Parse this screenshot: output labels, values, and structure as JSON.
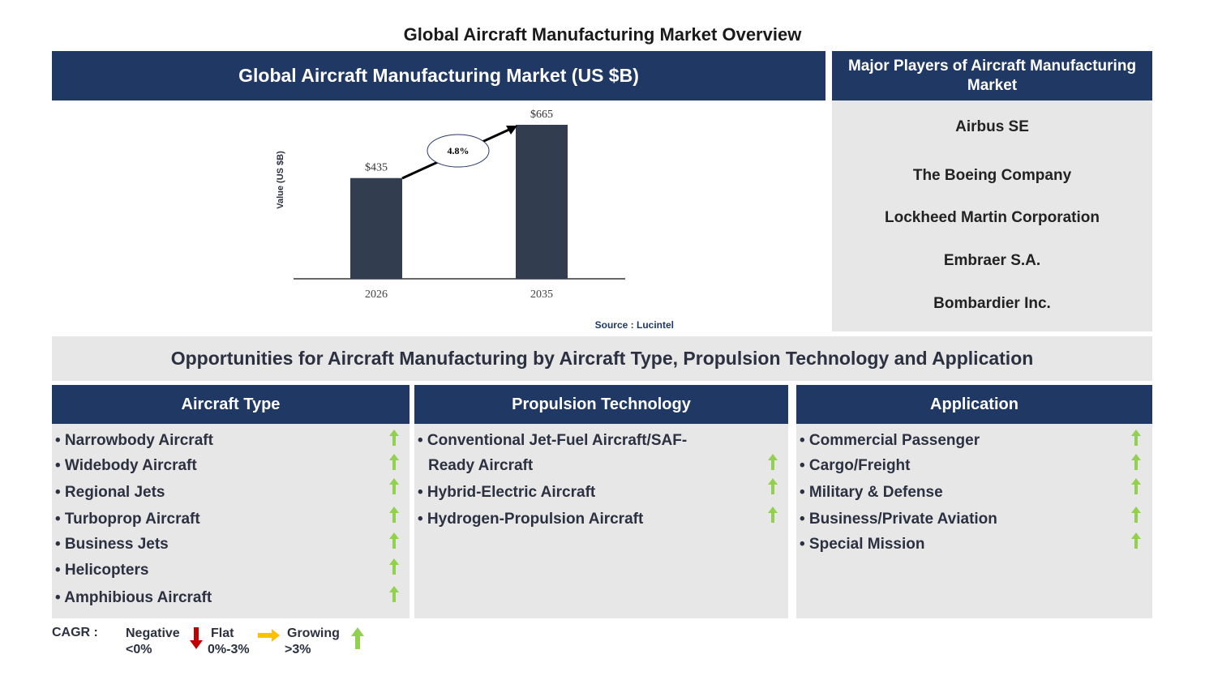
{
  "title": "Global Aircraft Manufacturing Market Overview",
  "market_header": "Global Aircraft Manufacturing Market (US $B)",
  "players_header": "Major Players of Aircraft Manufacturing Market",
  "players": [
    "Airbus SE",
    "The Boeing Company",
    "Lockheed Martin Corporation",
    "Embraer S.A.",
    "Bombardier Inc."
  ],
  "source": "Source : Lucintel",
  "opportunities_title": "Opportunities for Aircraft Manufacturing by Aircraft Type, Propulsion Technology and Application",
  "colors": {
    "navy": "#1f3864",
    "bar": "#333d50",
    "grey": "#e7e7e7",
    "growing": "#92d050",
    "flat": "#ffc000",
    "negative": "#c00000"
  },
  "segments": [
    {
      "header": "Aircraft Type",
      "items": [
        {
          "label": "• Narrowbody Aircraft",
          "trend": "growing"
        },
        {
          "label": "• Widebody Aircraft",
          "trend": "growing"
        },
        {
          "label": "• Regional Jets",
          "trend": "growing"
        },
        {
          "label": "• Turboprop Aircraft",
          "trend": "growing"
        },
        {
          "label": "• Business Jets",
          "trend": "growing"
        },
        {
          "label": "• Helicopters",
          "trend": "growing"
        },
        {
          "label": "• Amphibious Aircraft",
          "trend": "growing"
        }
      ]
    },
    {
      "header": "Propulsion Technology",
      "items": [
        {
          "label": "• Conventional Jet-Fuel Aircraft/SAF-",
          "label2": "Ready Aircraft",
          "trend": "growing"
        },
        {
          "label": "• Hybrid-Electric Aircraft",
          "trend": "growing"
        },
        {
          "label": "• Hydrogen-Propulsion Aircraft",
          "trend": "growing"
        }
      ]
    },
    {
      "header": "Application",
      "items": [
        {
          "label": "• Commercial Passenger",
          "trend": "growing"
        },
        {
          "label": "• Cargo/Freight",
          "trend": "growing"
        },
        {
          "label": "• Military & Defense",
          "trend": "growing"
        },
        {
          "label": "• Business/Private Aviation",
          "trend": "growing"
        },
        {
          "label": "• Special Mission",
          "trend": "growing"
        }
      ]
    }
  ],
  "legend": {
    "label": "CAGR :",
    "negative": "Negative",
    "negative_range": "<0%",
    "flat": "Flat",
    "flat_range": "0%-3%",
    "growing": "Growing",
    "growing_range": ">3%"
  },
  "chart_data": {
    "type": "bar",
    "categories": [
      "2026",
      "2035"
    ],
    "values": [
      435,
      665
    ],
    "data_labels": [
      "$435",
      "$665"
    ],
    "ylabel": "Value (US $B)",
    "cagr_annotation": "4.8%",
    "ylim": [
      0,
      665
    ],
    "grid": false
  }
}
